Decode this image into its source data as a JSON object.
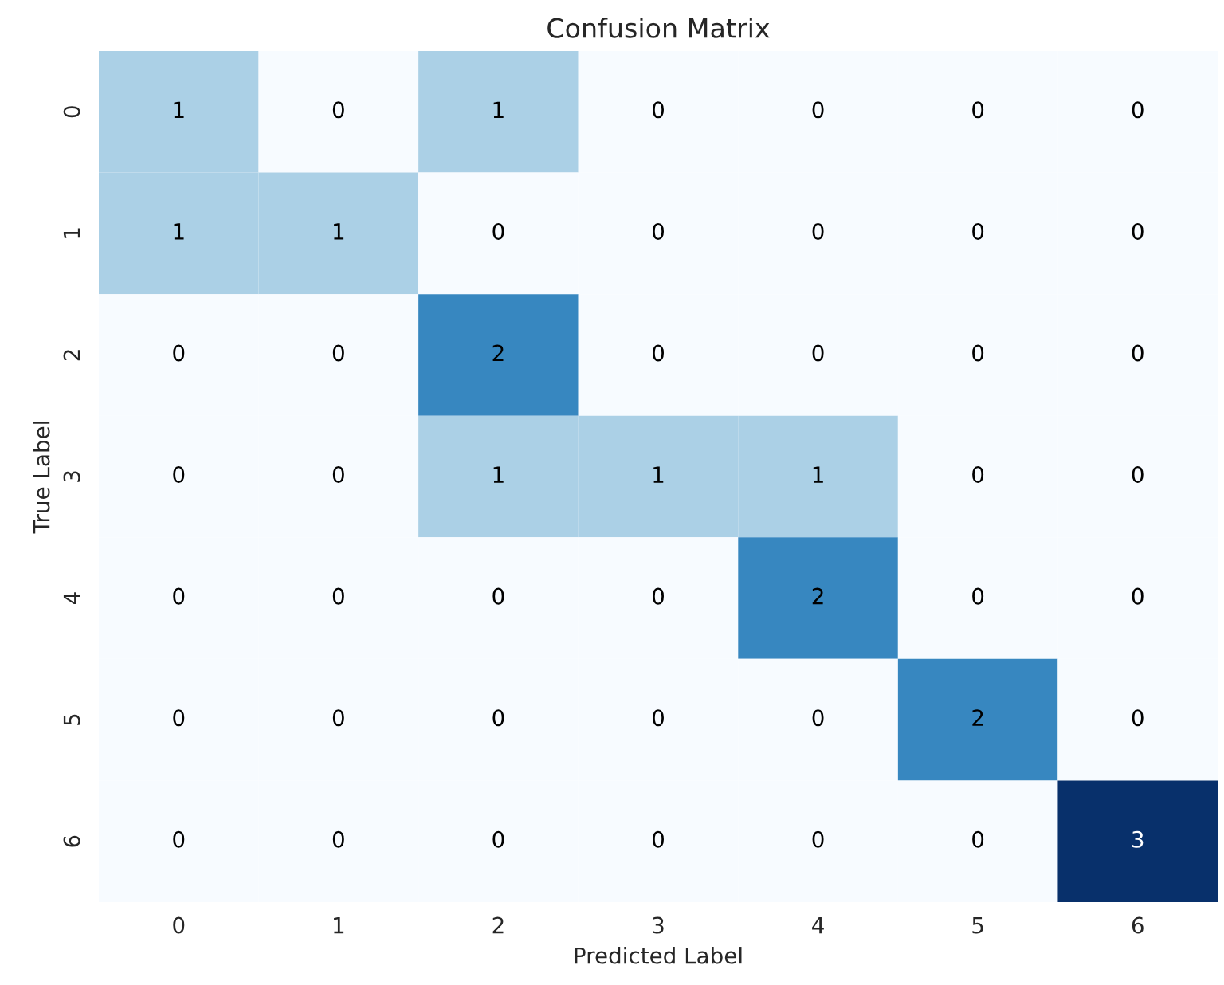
{
  "chart_data": {
    "type": "heatmap",
    "title": "Confusion Matrix",
    "xlabel": "Predicted Label",
    "ylabel": "True Label",
    "categories": [
      "0",
      "1",
      "2",
      "3",
      "4",
      "5",
      "6"
    ],
    "y_categories": [
      "0",
      "1",
      "2",
      "3",
      "4",
      "5",
      "6"
    ],
    "cells": [
      [
        1,
        0,
        1,
        0,
        0,
        0,
        0
      ],
      [
        1,
        1,
        0,
        0,
        0,
        0,
        0
      ],
      [
        0,
        0,
        2,
        0,
        0,
        0,
        0
      ],
      [
        0,
        0,
        1,
        1,
        1,
        0,
        0
      ],
      [
        0,
        0,
        0,
        0,
        2,
        0,
        0
      ],
      [
        0,
        0,
        0,
        0,
        0,
        2,
        0
      ],
      [
        0,
        0,
        0,
        0,
        0,
        0,
        3
      ]
    ],
    "data_labels": true
  }
}
